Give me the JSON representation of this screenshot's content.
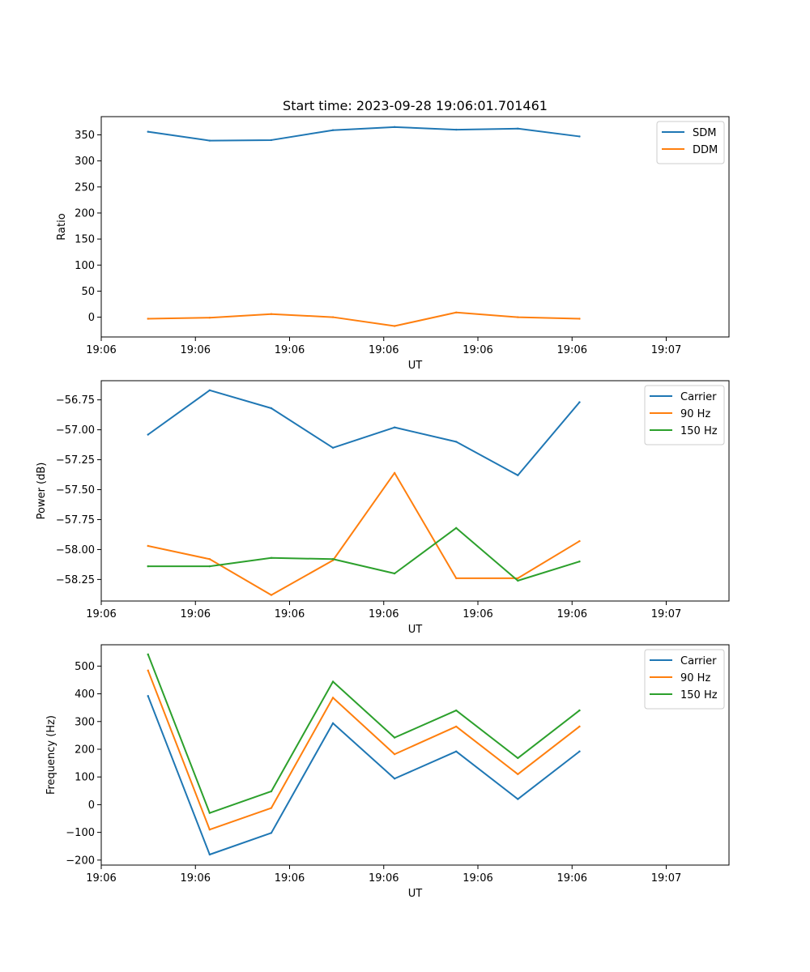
{
  "colors": {
    "series1": "#1f77b4",
    "series2": "#ff7f0e",
    "series3": "#2ca02c",
    "axis": "#000000",
    "legend_border": "#cccccc"
  },
  "chart_data": [
    {
      "type": "line",
      "title": "Start time: 2023-09-28 19:06:01.701461",
      "xlabel": "UT",
      "ylabel": "Ratio",
      "xlim": [
        0,
        11
      ],
      "xticks": [
        0,
        1.65,
        3.3,
        4.95,
        6.6,
        8.25,
        9.9
      ],
      "xtick_labels": [
        "19:06",
        "19:06",
        "19:06",
        "19:06",
        "19:06",
        "19:06",
        "19:07"
      ],
      "ylim": [
        -38,
        385
      ],
      "yticks": [
        0,
        50,
        100,
        150,
        200,
        250,
        300,
        350
      ],
      "ytick_labels": [
        "0",
        "50",
        "100",
        "150",
        "200",
        "250",
        "300",
        "350"
      ],
      "legend_position": "top-right",
      "x": [
        0.82,
        1.9,
        2.98,
        4.06,
        5.14,
        6.22,
        7.3,
        8.38
      ],
      "series": [
        {
          "name": "SDM",
          "color": "#1f77b4",
          "values": [
            356,
            339,
            340,
            359,
            365,
            360,
            362,
            347
          ]
        },
        {
          "name": "DDM",
          "color": "#ff7f0e",
          "values": [
            -3,
            -1,
            6,
            0,
            -17,
            9,
            0,
            -3
          ]
        }
      ]
    },
    {
      "type": "line",
      "title": "",
      "xlabel": "UT",
      "ylabel": "Power (dB)",
      "xlim": [
        0,
        11
      ],
      "xticks": [
        0,
        1.65,
        3.3,
        4.95,
        6.6,
        8.25,
        9.9
      ],
      "xtick_labels": [
        "19:06",
        "19:06",
        "19:06",
        "19:06",
        "19:06",
        "19:06",
        "19:07"
      ],
      "ylim": [
        -58.43,
        -56.59
      ],
      "yticks": [
        -58.25,
        -58.0,
        -57.75,
        -57.5,
        -57.25,
        -57.0,
        -56.75
      ],
      "ytick_labels": [
        "−58.25",
        "−58.00",
        "−57.75",
        "−57.50",
        "−57.25",
        "−57.00",
        "−56.75"
      ],
      "legend_position": "top-right",
      "x": [
        0.82,
        1.9,
        2.98,
        4.06,
        5.14,
        6.22,
        7.3,
        8.38
      ],
      "series": [
        {
          "name": "Carrier",
          "color": "#1f77b4",
          "values": [
            -57.04,
            -56.67,
            -56.82,
            -57.15,
            -56.98,
            -57.1,
            -57.38,
            -56.77
          ]
        },
        {
          "name": "90 Hz",
          "color": "#ff7f0e",
          "values": [
            -57.97,
            -58.08,
            -58.38,
            -58.09,
            -57.36,
            -58.24,
            -58.24,
            -57.93
          ]
        },
        {
          "name": "150 Hz",
          "color": "#2ca02c",
          "values": [
            -58.14,
            -58.14,
            -58.07,
            -58.08,
            -58.2,
            -57.82,
            -58.26,
            -58.1
          ]
        }
      ]
    },
    {
      "type": "line",
      "title": "",
      "xlabel": "UT",
      "ylabel": "Frequency (Hz)",
      "xlim": [
        0,
        11
      ],
      "xticks": [
        0,
        1.65,
        3.3,
        4.95,
        6.6,
        8.25,
        9.9
      ],
      "xtick_labels": [
        "19:06",
        "19:06",
        "19:06",
        "19:06",
        "19:06",
        "19:06",
        "19:07"
      ],
      "ylim": [
        -218,
        577
      ],
      "yticks": [
        -200,
        -100,
        0,
        100,
        200,
        300,
        400,
        500
      ],
      "ytick_labels": [
        "−200",
        "−100",
        "0",
        "100",
        "200",
        "300",
        "400",
        "500"
      ],
      "legend_position": "top-right",
      "x": [
        0.82,
        1.9,
        2.98,
        4.06,
        5.14,
        6.22,
        7.3,
        8.38
      ],
      "series": [
        {
          "name": "Carrier",
          "color": "#1f77b4",
          "values": [
            392,
            -180,
            -102,
            294,
            94,
            192,
            20,
            192
          ]
        },
        {
          "name": "90 Hz",
          "color": "#ff7f0e",
          "values": [
            484,
            -90,
            -12,
            386,
            182,
            282,
            110,
            282
          ]
        },
        {
          "name": "150 Hz",
          "color": "#2ca02c",
          "values": [
            542,
            -30,
            48,
            444,
            242,
            340,
            168,
            340
          ]
        }
      ]
    }
  ]
}
